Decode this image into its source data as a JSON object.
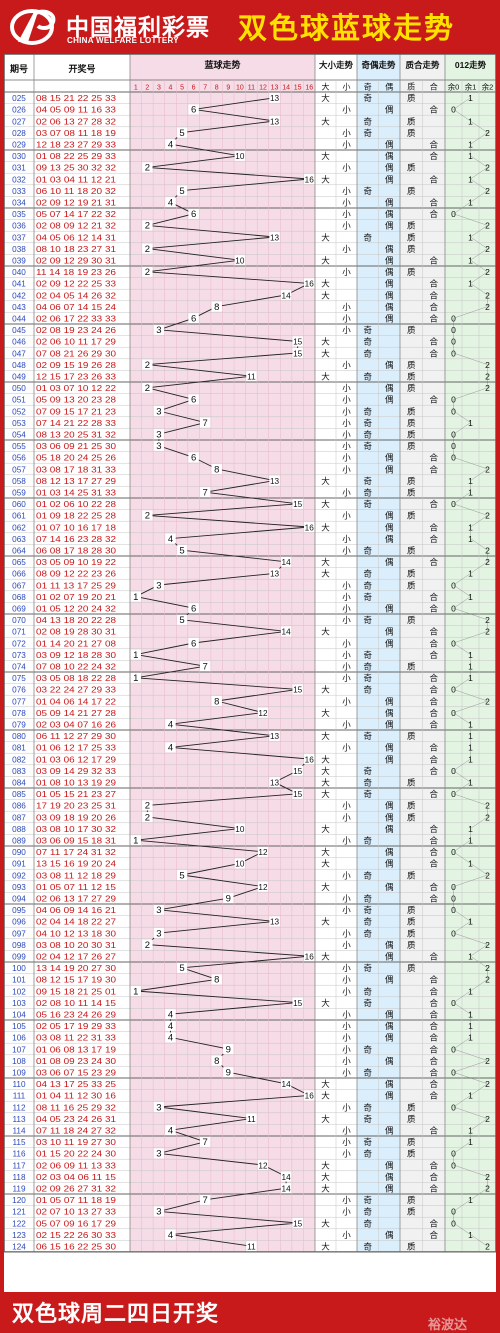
{
  "header": {
    "logo_cn": "中国福利彩票",
    "logo_en": "CHINA WELFARE LOTTERY",
    "title": "双色球蓝球走势"
  },
  "footer": {
    "title": "双色球周二四日开奖",
    "watermark": "裕波达"
  },
  "columns": {
    "period": "期号",
    "numbers": "开奖号",
    "blue": "蓝球走势",
    "size": "大小走势",
    "parity": "奇偶走势",
    "prime": "质合走势",
    "mod": "012走势"
  },
  "sub_headers": {
    "blue": [
      "1",
      "2",
      "3",
      "4",
      "5",
      "6",
      "7",
      "8",
      "9",
      "10",
      "11",
      "12",
      "13",
      "14",
      "15",
      "16"
    ],
    "size": [
      "大",
      "小"
    ],
    "parity": [
      "奇",
      "偶"
    ],
    "prime": [
      "质",
      "合"
    ],
    "mod": [
      "余0",
      "余1",
      "余2"
    ]
  },
  "colors": {
    "red": "#c8191b",
    "title_yellow": "#ffe100",
    "period_blue": "#2b49b8",
    "number_red": "#c8191b",
    "blue_bg": "#f5dce6",
    "size_bg": "#ffffff",
    "parity_bg": "#dbeefc",
    "prime_bg": "#f1f1f1",
    "mod_bg": "#e3f4e3",
    "grid": "#c5c5c5",
    "line": "#222222"
  },
  "rows": [
    {
      "p": "025",
      "n": "08 15 21 22 25 33",
      "b": 13,
      "s": "大",
      "o": "奇",
      "q": "质",
      "m": "余1"
    },
    {
      "p": "026",
      "n": "04 05 09 11 16 33",
      "b": 6,
      "s": "小",
      "o": "偶",
      "q": "合",
      "m": "余0"
    },
    {
      "p": "027",
      "n": "02 06 13 27 28 32",
      "b": 13,
      "s": "大",
      "o": "奇",
      "q": "质",
      "m": "余1"
    },
    {
      "p": "028",
      "n": "03 07 08 11 18 19",
      "b": 5,
      "s": "小",
      "o": "奇",
      "q": "质",
      "m": "余2"
    },
    {
      "p": "029",
      "n": "12 18 23 27 29 33",
      "b": 4,
      "s": "小",
      "o": "偶",
      "q": "合",
      "m": "余1"
    },
    {
      "p": "030",
      "n": "01 08 22 25 29 33",
      "b": 10,
      "s": "大",
      "o": "偶",
      "q": "合",
      "m": "余1"
    },
    {
      "p": "031",
      "n": "09 13 25 30 32 32",
      "b": 2,
      "s": "小",
      "o": "偶",
      "q": "质",
      "m": "余2"
    },
    {
      "p": "032",
      "n": "01 03 04 11 12 21",
      "b": 16,
      "s": "大",
      "o": "偶",
      "q": "合",
      "m": "余1"
    },
    {
      "p": "033",
      "n": "06 10 11 18 20 32",
      "b": 5,
      "s": "小",
      "o": "奇",
      "q": "质",
      "m": "余2"
    },
    {
      "p": "034",
      "n": "02 09 12 19 21 31",
      "b": 4,
      "s": "小",
      "o": "偶",
      "q": "合",
      "m": "余1"
    },
    {
      "p": "035",
      "n": "05 07 14 17 22 32",
      "b": 6,
      "s": "小",
      "o": "偶",
      "q": "合",
      "m": "余0"
    },
    {
      "p": "036",
      "n": "02 08 09 12 21 32",
      "b": 2,
      "s": "小",
      "o": "偶",
      "q": "质",
      "m": "余2"
    },
    {
      "p": "037",
      "n": "04 05 06 12 14 31",
      "b": 13,
      "s": "大",
      "o": "奇",
      "q": "质",
      "m": "余1"
    },
    {
      "p": "038",
      "n": "08 10 18 23 27 31",
      "b": 2,
      "s": "小",
      "o": "偶",
      "q": "质",
      "m": "余2"
    },
    {
      "p": "039",
      "n": "02 09 12 29 30 31",
      "b": 10,
      "s": "大",
      "o": "偶",
      "q": "合",
      "m": "余1"
    },
    {
      "p": "040",
      "n": "11 14 18 19 23 26",
      "b": 2,
      "s": "小",
      "o": "偶",
      "q": "质",
      "m": "余2"
    },
    {
      "p": "041",
      "n": "02 09 12 22 25 33",
      "b": 16,
      "s": "大",
      "o": "偶",
      "q": "合",
      "m": "余1"
    },
    {
      "p": "042",
      "n": "02 04 05 14 26 32",
      "b": 14,
      "s": "大",
      "o": "偶",
      "q": "合",
      "m": "余2"
    },
    {
      "p": "043",
      "n": "04 06 07 14 15 24",
      "b": 8,
      "s": "小",
      "o": "偶",
      "q": "合",
      "m": "余2"
    },
    {
      "p": "044",
      "n": "02 06 17 22 33 33",
      "b": 6,
      "s": "小",
      "o": "偶",
      "q": "合",
      "m": "余0"
    },
    {
      "p": "045",
      "n": "02 08 19 23 24 26",
      "b": 3,
      "s": "小",
      "o": "奇",
      "q": "质",
      "m": "余0"
    },
    {
      "p": "046",
      "n": "02 06 10 11 17 29",
      "b": 15,
      "s": "大",
      "o": "奇",
      "q": "合",
      "m": "余0"
    },
    {
      "p": "047",
      "n": "07 08 21 26 29 30",
      "b": 15,
      "s": "大",
      "o": "奇",
      "q": "合",
      "m": "余0"
    },
    {
      "p": "048",
      "n": "02 09 15 19 26 28",
      "b": 2,
      "s": "小",
      "o": "偶",
      "q": "质",
      "m": "余2"
    },
    {
      "p": "049",
      "n": "12 15 17 23 26 33",
      "b": 11,
      "s": "大",
      "o": "奇",
      "q": "质",
      "m": "余2"
    },
    {
      "p": "050",
      "n": "01 03 07 10 12 22",
      "b": 2,
      "s": "小",
      "o": "偶",
      "q": "质",
      "m": "余2"
    },
    {
      "p": "051",
      "n": "05 09 13 20 23 28",
      "b": 6,
      "s": "小",
      "o": "偶",
      "q": "合",
      "m": "余0"
    },
    {
      "p": "052",
      "n": "07 09 15 17 21 23",
      "b": 3,
      "s": "小",
      "o": "奇",
      "q": "质",
      "m": "余0"
    },
    {
      "p": "053",
      "n": "07 14 21 22 28 33",
      "b": 7,
      "s": "小",
      "o": "奇",
      "q": "质",
      "m": "余1"
    },
    {
      "p": "054",
      "n": "08 13 20 25 31 32",
      "b": 3,
      "s": "小",
      "o": "奇",
      "q": "质",
      "m": "余0"
    },
    {
      "p": "055",
      "n": "03 06 09 21 25 30",
      "b": 3,
      "s": "小",
      "o": "奇",
      "q": "质",
      "m": "余0"
    },
    {
      "p": "056",
      "n": "05 18 20 24 25 26",
      "b": 6,
      "s": "小",
      "o": "偶",
      "q": "合",
      "m": "余0"
    },
    {
      "p": "057",
      "n": "03 08 17 18 31 33",
      "b": 8,
      "s": "小",
      "o": "偶",
      "q": "合",
      "m": "余2"
    },
    {
      "p": "058",
      "n": "08 12 13 17 27 29",
      "b": 13,
      "s": "大",
      "o": "奇",
      "q": "质",
      "m": "余1"
    },
    {
      "p": "059",
      "n": "01 03 14 25 31 33",
      "b": 7,
      "s": "小",
      "o": "奇",
      "q": "质",
      "m": "余1"
    },
    {
      "p": "060",
      "n": "01 02 06 10 22 28",
      "b": 15,
      "s": "大",
      "o": "奇",
      "q": "合",
      "m": "余0"
    },
    {
      "p": "061",
      "n": "01 09 18 22 25 28",
      "b": 2,
      "s": "小",
      "o": "偶",
      "q": "质",
      "m": "余2"
    },
    {
      "p": "062",
      "n": "01 07 10 16 17 18",
      "b": 16,
      "s": "大",
      "o": "偶",
      "q": "合",
      "m": "余1"
    },
    {
      "p": "063",
      "n": "07 14 16 23 28 32",
      "b": 4,
      "s": "小",
      "o": "偶",
      "q": "合",
      "m": "余1"
    },
    {
      "p": "064",
      "n": "06 08 17 18 28 30",
      "b": 5,
      "s": "小",
      "o": "奇",
      "q": "质",
      "m": "余2"
    },
    {
      "p": "065",
      "n": "03 05 09 10 19 22",
      "b": 14,
      "s": "大",
      "o": "偶",
      "q": "合",
      "m": "余2"
    },
    {
      "p": "066",
      "n": "08 09 12 22 23 26",
      "b": 13,
      "s": "大",
      "o": "奇",
      "q": "质",
      "m": "余1"
    },
    {
      "p": "067",
      "n": "01 11 13 17 25 29",
      "b": 3,
      "s": "小",
      "o": "奇",
      "q": "质",
      "m": "余0"
    },
    {
      "p": "068",
      "n": "01 02 07 19 20 21",
      "b": 1,
      "s": "小",
      "o": "奇",
      "q": "合",
      "m": "余1"
    },
    {
      "p": "069",
      "n": "01 05 12 20 24 32",
      "b": 6,
      "s": "小",
      "o": "偶",
      "q": "合",
      "m": "余0"
    },
    {
      "p": "070",
      "n": "04 13 18 20 22 28",
      "b": 5,
      "s": "小",
      "o": "奇",
      "q": "质",
      "m": "余2"
    },
    {
      "p": "071",
      "n": "02 08 19 28 30 31",
      "b": 14,
      "s": "大",
      "o": "偶",
      "q": "合",
      "m": "余2"
    },
    {
      "p": "072",
      "n": "01 14 20 21 27 08",
      "b": 6,
      "s": "小",
      "o": "偶",
      "q": "合",
      "m": "余0"
    },
    {
      "p": "073",
      "n": "03 09 12 18 28 30",
      "b": 1,
      "s": "小",
      "o": "奇",
      "q": "合",
      "m": "余1"
    },
    {
      "p": "074",
      "n": "07 08 10 22 24 32",
      "b": 7,
      "s": "小",
      "o": "奇",
      "q": "质",
      "m": "余1"
    },
    {
      "p": "075",
      "n": "03 05 08 18 22 28",
      "b": 1,
      "s": "小",
      "o": "奇",
      "q": "合",
      "m": "余1"
    },
    {
      "p": "076",
      "n": "03 22 24 27 29 33",
      "b": 15,
      "s": "大",
      "o": "奇",
      "q": "合",
      "m": "余0"
    },
    {
      "p": "077",
      "n": "01 04 06 14 17 22",
      "b": 8,
      "s": "小",
      "o": "偶",
      "q": "合",
      "m": "余2"
    },
    {
      "p": "078",
      "n": "05 09 14 21 27 28",
      "b": 12,
      "s": "大",
      "o": "偶",
      "q": "合",
      "m": "余0"
    },
    {
      "p": "079",
      "n": "02 03 04 07 16 26",
      "b": 4,
      "s": "小",
      "o": "偶",
      "q": "合",
      "m": "余1"
    },
    {
      "p": "080",
      "n": "06 11 12 27 29 30",
      "b": 13,
      "s": "大",
      "o": "奇",
      "q": "质",
      "m": "余1"
    },
    {
      "p": "081",
      "n": "01 06 12 17 25 33",
      "b": 4,
      "s": "小",
      "o": "偶",
      "q": "合",
      "m": "余1"
    },
    {
      "p": "082",
      "n": "01 03 06 12 17 29",
      "b": 16,
      "s": "大",
      "o": "偶",
      "q": "合",
      "m": "余1"
    },
    {
      "p": "083",
      "n": "03 09 14 29 32 33",
      "b": 15,
      "s": "大",
      "o": "奇",
      "q": "合",
      "m": "余0"
    },
    {
      "p": "084",
      "n": "01 08 10 13 19 29",
      "b": 13,
      "s": "大",
      "o": "奇",
      "q": "质",
      "m": "余1"
    },
    {
      "p": "085",
      "n": "01 05 15 21 23 27",
      "b": 15,
      "s": "大",
      "o": "奇",
      "q": "合",
      "m": "余0"
    },
    {
      "p": "086",
      "n": "17 19 20 23 25 31",
      "b": 2,
      "s": "小",
      "o": "偶",
      "q": "质",
      "m": "余2"
    },
    {
      "p": "087",
      "n": "03 09 18 19 20 26",
      "b": 2,
      "s": "小",
      "o": "偶",
      "q": "质",
      "m": "余2"
    },
    {
      "p": "088",
      "n": "03 08 10 17 30 32",
      "b": 10,
      "s": "大",
      "o": "偶",
      "q": "合",
      "m": "余1"
    },
    {
      "p": "089",
      "n": "03 06 09 15 18 31",
      "b": 1,
      "s": "小",
      "o": "奇",
      "q": "合",
      "m": "余1"
    },
    {
      "p": "090",
      "n": "07 11 17 24 31 32",
      "b": 12,
      "s": "大",
      "o": "偶",
      "q": "合",
      "m": "余0"
    },
    {
      "p": "091",
      "n": "13 15 16 19 20 24",
      "b": 10,
      "s": "大",
      "o": "偶",
      "q": "合",
      "m": "余1"
    },
    {
      "p": "092",
      "n": "03 08 11 12 18 29",
      "b": 5,
      "s": "小",
      "o": "奇",
      "q": "质",
      "m": "余2"
    },
    {
      "p": "093",
      "n": "01 05 07 11 12 15",
      "b": 12,
      "s": "大",
      "o": "偶",
      "q": "合",
      "m": "余0"
    },
    {
      "p": "094",
      "n": "02 06 13 17 27 29",
      "b": 9,
      "s": "小",
      "o": "奇",
      "q": "合",
      "m": "余0"
    },
    {
      "p": "095",
      "n": "04 06 09 14 16 21",
      "b": 3,
      "s": "小",
      "o": "奇",
      "q": "质",
      "m": "余0"
    },
    {
      "p": "096",
      "n": "02 04 14 18 22 27",
      "b": 13,
      "s": "大",
      "o": "奇",
      "q": "质",
      "m": "余1"
    },
    {
      "p": "097",
      "n": "04 10 12 13 18 30",
      "b": 3,
      "s": "小",
      "o": "奇",
      "q": "质",
      "m": "余0"
    },
    {
      "p": "098",
      "n": "03 08 10 20 30 31",
      "b": 2,
      "s": "小",
      "o": "偶",
      "q": "质",
      "m": "余2"
    },
    {
      "p": "099",
      "n": "02 04 12 17 26 27",
      "b": 16,
      "s": "大",
      "o": "偶",
      "q": "合",
      "m": "余1"
    },
    {
      "p": "100",
      "n": "13 14 19 20 27 30",
      "b": 5,
      "s": "小",
      "o": "奇",
      "q": "质",
      "m": "余2"
    },
    {
      "p": "101",
      "n": "08 12 15 17 19 30",
      "b": 8,
      "s": "小",
      "o": "偶",
      "q": "合",
      "m": "余2"
    },
    {
      "p": "102",
      "n": "09 15 18 21 25 01",
      "b": 1,
      "s": "小",
      "o": "奇",
      "q": "合",
      "m": "余1"
    },
    {
      "p": "103",
      "n": "02 08 10 11 14 15",
      "b": 15,
      "s": "大",
      "o": "奇",
      "q": "合",
      "m": "余0"
    },
    {
      "p": "104",
      "n": "05 16 23 24 26 29",
      "b": 4,
      "s": "小",
      "o": "偶",
      "q": "合",
      "m": "余1"
    },
    {
      "p": "105",
      "n": "02 05 17 19 29 33",
      "b": 4,
      "s": "小",
      "o": "偶",
      "q": "合",
      "m": "余1"
    },
    {
      "p": "106",
      "n": "03 08 11 22 31 33",
      "b": 4,
      "s": "小",
      "o": "偶",
      "q": "合",
      "m": "余1"
    },
    {
      "p": "107",
      "n": "01 06 08 13 17 19",
      "b": 9,
      "s": "小",
      "o": "奇",
      "q": "合",
      "m": "余0"
    },
    {
      "p": "108",
      "n": "01 08 09 23 24 30",
      "b": 8,
      "s": "小",
      "o": "偶",
      "q": "合",
      "m": "余2"
    },
    {
      "p": "109",
      "n": "03 06 07 15 23 29",
      "b": 9,
      "s": "小",
      "o": "奇",
      "q": "合",
      "m": "余0"
    },
    {
      "p": "110",
      "n": "04 13 17 25 33 25",
      "b": 14,
      "s": "大",
      "o": "偶",
      "q": "合",
      "m": "余2"
    },
    {
      "p": "111",
      "n": "01 04 11 12 30 16",
      "b": 16,
      "s": "大",
      "o": "偶",
      "q": "合",
      "m": "余1"
    },
    {
      "p": "112",
      "n": "08 11 16 25 29 32",
      "b": 3,
      "s": "小",
      "o": "奇",
      "q": "质",
      "m": "余0"
    },
    {
      "p": "113",
      "n": "04 05 23 24 26 31",
      "b": 11,
      "s": "大",
      "o": "奇",
      "q": "质",
      "m": "余2"
    },
    {
      "p": "114",
      "n": "07 11 18 24 27 32",
      "b": 4,
      "s": "小",
      "o": "偶",
      "q": "合",
      "m": "余1"
    },
    {
      "p": "115",
      "n": "03 10 11 19 27 30",
      "b": 7,
      "s": "小",
      "o": "奇",
      "q": "质",
      "m": "余1"
    },
    {
      "p": "116",
      "n": "01 15 20 22 24 30",
      "b": 3,
      "s": "小",
      "o": "奇",
      "q": "质",
      "m": "余0"
    },
    {
      "p": "117",
      "n": "02 06 09 11 13 33",
      "b": 12,
      "s": "大",
      "o": "偶",
      "q": "合",
      "m": "余0"
    },
    {
      "p": "118",
      "n": "02 03 04 06 11 15",
      "b": 14,
      "s": "大",
      "o": "偶",
      "q": "合",
      "m": "余2"
    },
    {
      "p": "119",
      "n": "02 09 26 27 31 32",
      "b": 14,
      "s": "大",
      "o": "偶",
      "q": "合",
      "m": "余2"
    },
    {
      "p": "120",
      "n": "01 05 07 11 18 19",
      "b": 7,
      "s": "小",
      "o": "奇",
      "q": "质",
      "m": "余1"
    },
    {
      "p": "121",
      "n": "02 07 10 13 27 33",
      "b": 3,
      "s": "小",
      "o": "奇",
      "q": "质",
      "m": "余0"
    },
    {
      "p": "122",
      "n": "05 07 09 16 17 29",
      "b": 15,
      "s": "大",
      "o": "奇",
      "q": "合",
      "m": "余0"
    },
    {
      "p": "123",
      "n": "02 15 22 26 30 33",
      "b": 4,
      "s": "小",
      "o": "偶",
      "q": "合",
      "m": "余1"
    },
    {
      "p": "124",
      "n": "06 15 16 22 25 30",
      "b": 11,
      "s": "大",
      "o": "奇",
      "q": "质",
      "m": "余2"
    }
  ]
}
